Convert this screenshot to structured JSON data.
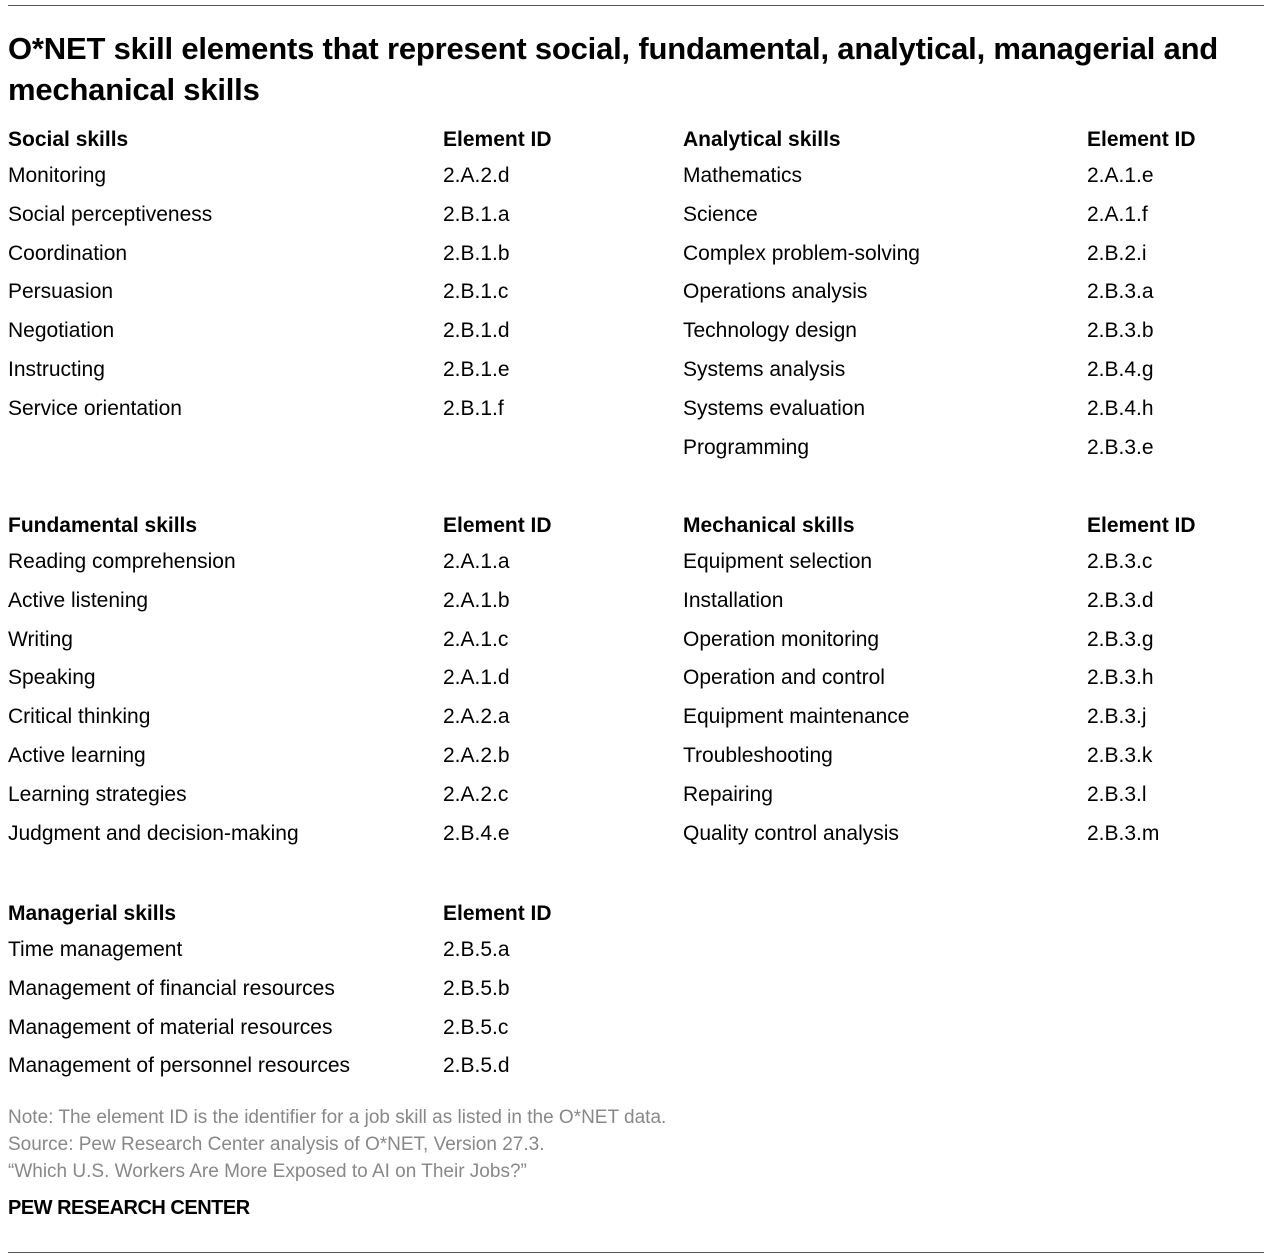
{
  "title": "O*NET skill elements that represent social, fundamental, analytical, managerial and mechanical skills",
  "sections": [
    {
      "heading": "Social skills",
      "id_heading": "Element ID",
      "rows": [
        [
          "Monitoring",
          "2.A.2.d"
        ],
        [
          "Social perceptiveness",
          "2.B.1.a"
        ],
        [
          "Coordination",
          "2.B.1.b"
        ],
        [
          "Persuasion",
          "2.B.1.c"
        ],
        [
          "Negotiation",
          "2.B.1.d"
        ],
        [
          "Instructing",
          "2.B.1.e"
        ],
        [
          "Service orientation",
          "2.B.1.f"
        ]
      ]
    },
    {
      "heading": "Analytical skills",
      "id_heading": "Element ID",
      "rows": [
        [
          "Mathematics",
          "2.A.1.e"
        ],
        [
          "Science",
          "2.A.1.f"
        ],
        [
          "Complex problem-solving",
          "2.B.2.i"
        ],
        [
          "Operations analysis",
          "2.B.3.a"
        ],
        [
          "Technology design",
          "2.B.3.b"
        ],
        [
          "Systems analysis",
          "2.B.4.g"
        ],
        [
          "Systems evaluation",
          "2.B.4.h"
        ],
        [
          "Programming",
          "2.B.3.e"
        ]
      ]
    },
    {
      "heading": "Fundamental skills",
      "id_heading": "Element ID",
      "rows": [
        [
          "Reading comprehension",
          "2.A.1.a"
        ],
        [
          "Active listening",
          "2.A.1.b"
        ],
        [
          "Writing",
          "2.A.1.c"
        ],
        [
          "Speaking",
          "2.A.1.d"
        ],
        [
          "Critical thinking",
          "2.A.2.a"
        ],
        [
          "Active learning",
          "2.A.2.b"
        ],
        [
          "Learning strategies",
          "2.A.2.c"
        ],
        [
          "Judgment and decision-making",
          "2.B.4.e"
        ]
      ]
    },
    {
      "heading": "Mechanical skills",
      "id_heading": "Element ID",
      "rows": [
        [
          "Equipment selection",
          "2.B.3.c"
        ],
        [
          "Installation",
          "2.B.3.d"
        ],
        [
          "Operation monitoring",
          "2.B.3.g"
        ],
        [
          "Operation and control",
          "2.B.3.h"
        ],
        [
          "Equipment maintenance",
          "2.B.3.j"
        ],
        [
          "Troubleshooting",
          "2.B.3.k"
        ],
        [
          "Repairing",
          "2.B.3.l"
        ],
        [
          "Quality control analysis",
          "2.B.3.m"
        ]
      ]
    },
    {
      "heading": "Managerial skills",
      "id_heading": "Element ID",
      "rows": [
        [
          "Time management",
          "2.B.5.a"
        ],
        [
          "Management of financial resources",
          "2.B.5.b"
        ],
        [
          "Management of material resources",
          "2.B.5.c"
        ],
        [
          "Management of personnel resources",
          "2.B.5.d"
        ]
      ]
    }
  ],
  "notes": {
    "note": "Note: The element ID is the identifier for a job skill as listed in the O*NET data.",
    "source": "Source: Pew Research Center analysis of O*NET, Version 27.3.",
    "report": "“Which U.S. Workers Are More Exposed to AI on Their Jobs?”"
  },
  "brand": "PEW RESEARCH CENTER"
}
